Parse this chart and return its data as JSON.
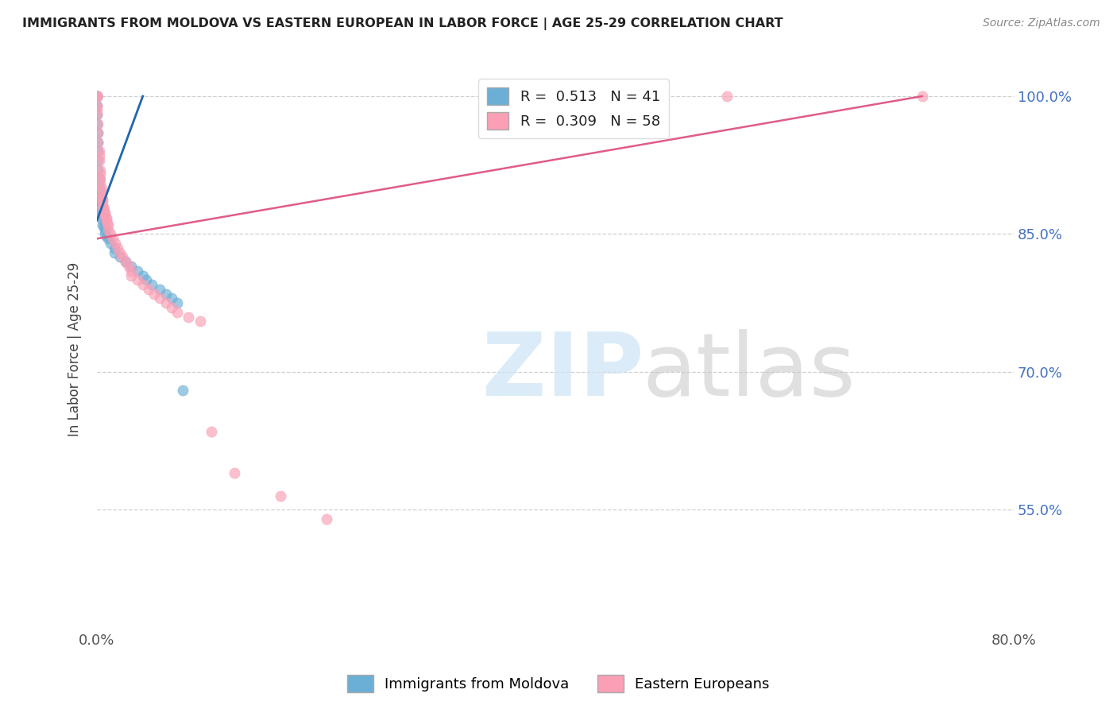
{
  "title": "IMMIGRANTS FROM MOLDOVA VS EASTERN EUROPEAN IN LABOR FORCE | AGE 25-29 CORRELATION CHART",
  "source": "Source: ZipAtlas.com",
  "ylabel": "In Labor Force | Age 25-29",
  "xlim": [
    0.0,
    0.8
  ],
  "ylim": [
    0.42,
    1.03
  ],
  "ytick_values": [
    0.55,
    0.7,
    0.85,
    1.0
  ],
  "r_moldova": 0.513,
  "n_moldova": 41,
  "r_eastern": 0.309,
  "n_eastern": 58,
  "color_moldova": "#6baed6",
  "color_eastern": "#fa9fb5",
  "color_line_moldova": "#2166ac",
  "color_line_eastern": "#e05c8a",
  "legend_label_moldova": "Immigrants from Moldova",
  "legend_label_eastern": "Eastern Europeans",
  "moldova_points_x": [
    0.0,
    0.0,
    0.0,
    0.0,
    0.0,
    0.0,
    0.0,
    0.001,
    0.001,
    0.001,
    0.001,
    0.001,
    0.002,
    0.002,
    0.002,
    0.003,
    0.003,
    0.004,
    0.004,
    0.005,
    0.005,
    0.006,
    0.007,
    0.007,
    0.008,
    0.01,
    0.012,
    0.015,
    0.015,
    0.02,
    0.025,
    0.03,
    0.035,
    0.04,
    0.043,
    0.048,
    0.055,
    0.06,
    0.065,
    0.07,
    0.075
  ],
  "moldova_points_y": [
    1.0,
    1.0,
    1.0,
    1.0,
    0.99,
    0.98,
    0.97,
    0.96,
    0.95,
    0.94,
    0.93,
    0.92,
    0.91,
    0.9,
    0.89,
    0.885,
    0.88,
    0.875,
    0.87,
    0.865,
    0.86,
    0.858,
    0.855,
    0.85,
    0.848,
    0.845,
    0.84,
    0.835,
    0.83,
    0.825,
    0.82,
    0.815,
    0.81,
    0.805,
    0.8,
    0.795,
    0.79,
    0.785,
    0.78,
    0.775,
    0.68
  ],
  "eastern_points_x": [
    0.0,
    0.0,
    0.0,
    0.0,
    0.0,
    0.0,
    0.0,
    0.001,
    0.001,
    0.001,
    0.002,
    0.002,
    0.002,
    0.003,
    0.003,
    0.003,
    0.003,
    0.004,
    0.004,
    0.004,
    0.005,
    0.005,
    0.005,
    0.006,
    0.006,
    0.007,
    0.007,
    0.008,
    0.008,
    0.009,
    0.01,
    0.01,
    0.012,
    0.014,
    0.016,
    0.018,
    0.02,
    0.022,
    0.025,
    0.028,
    0.03,
    0.03,
    0.035,
    0.04,
    0.045,
    0.05,
    0.055,
    0.06,
    0.065,
    0.07,
    0.08,
    0.09,
    0.1,
    0.12,
    0.16,
    0.2,
    0.55,
    0.72
  ],
  "eastern_points_y": [
    1.0,
    1.0,
    1.0,
    1.0,
    0.99,
    0.985,
    0.98,
    0.97,
    0.96,
    0.95,
    0.94,
    0.935,
    0.93,
    0.92,
    0.915,
    0.91,
    0.905,
    0.9,
    0.895,
    0.89,
    0.888,
    0.885,
    0.88,
    0.878,
    0.875,
    0.873,
    0.87,
    0.868,
    0.865,
    0.862,
    0.86,
    0.855,
    0.85,
    0.845,
    0.84,
    0.835,
    0.83,
    0.825,
    0.82,
    0.815,
    0.81,
    0.805,
    0.8,
    0.795,
    0.79,
    0.785,
    0.78,
    0.775,
    0.77,
    0.765,
    0.76,
    0.755,
    0.635,
    0.59,
    0.565,
    0.54,
    1.0,
    1.0
  ]
}
